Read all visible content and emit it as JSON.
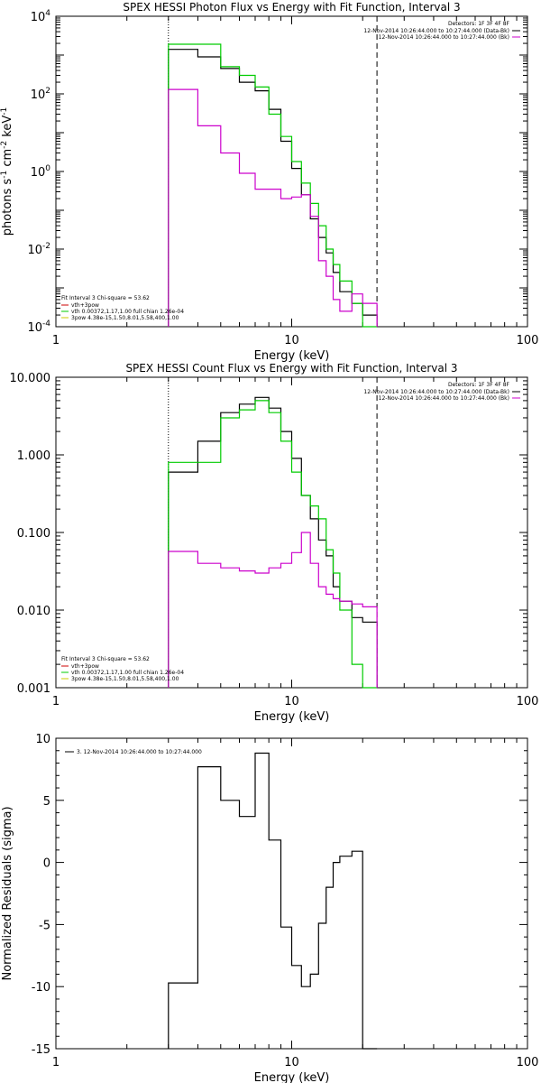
{
  "panels": [
    {
      "title": "SPEX HESSI Photon Flux vs Energy with Fit Function, Interval 3",
      "xlabel": "Energy (keV)",
      "ylabel": "photons s⁻¹ cm⁻² keV⁻¹",
      "ylabel_parts": [
        "photons s",
        "-1",
        " cm",
        "-2",
        " keV",
        "-1"
      ],
      "x_log": true,
      "y_log": true,
      "xlim": [
        1,
        100
      ],
      "ylim": [
        0.0001,
        10000
      ],
      "x_ticks": [
        {
          "v": 1,
          "label": "1"
        },
        {
          "v": 10,
          "label": "10"
        },
        {
          "v": 100,
          "label": "100"
        }
      ],
      "y_ticks": [
        {
          "v": 0.0001,
          "base": "10",
          "exp": "-4"
        },
        {
          "v": 0.01,
          "base": "10",
          "exp": "-2"
        },
        {
          "v": 1,
          "base": "10",
          "exp": "0"
        },
        {
          "v": 100,
          "base": "10",
          "exp": "2"
        },
        {
          "v": 10000,
          "base": "10",
          "exp": "4"
        }
      ],
      "vlines": [
        {
          "x": 3.0,
          "style": "dotted"
        },
        {
          "x": 23.0,
          "style": "dashed"
        }
      ],
      "legend_topright": {
        "header": "Detectors: 1F 3F 4F 8F",
        "lines": [
          {
            "text": "12-Nov-2014 10:26:44.000 to 10:27:44.000 (Data-Bk)",
            "color": "#000000"
          },
          {
            "text": "12-Nov-2014 10:26:44.000 to 10:27:44.000 (Bk)",
            "color": "#cc00cc"
          }
        ]
      },
      "legend_bottomleft": {
        "header": "Fit Interval 3   Chi-square = 53.62",
        "lines": [
          {
            "text": "vth+3pow",
            "color": "#cc0000"
          },
          {
            "text": "vth 0.00372,1.17,1.00  full chian 1.26e-04",
            "color": "#00cc00"
          },
          {
            "text": "3pow 4.38e-15,1.50,8.01,5.58,400,1.00",
            "color": "#cccc00"
          }
        ]
      },
      "chart_data": {
        "type": "line",
        "edges": [
          3.0,
          4.0,
          5.0,
          6.0,
          7.0,
          8.0,
          9.0,
          10.0,
          11.0,
          12.0,
          13.0,
          14.0,
          15.0,
          16.0,
          18.0,
          20.0,
          23.0
        ],
        "series": [
          {
            "color": "#000000",
            "values": [
              1400,
              900,
              450,
              200,
              120,
              40,
              6,
              1.2,
              0.25,
              0.06,
              0.02,
              0.008,
              0.0025,
              0.0008,
              0.0004,
              0.0002
            ]
          },
          {
            "color": "#00cc00",
            "values": [
              1900,
              1900,
              500,
              300,
              150,
              30,
              8,
              1.8,
              0.5,
              0.15,
              0.04,
              0.01,
              0.004,
              0.0015,
              0.0004,
              0.0001
            ]
          },
          {
            "color": "#cc00cc",
            "values": [
              130,
              15,
              3,
              0.9,
              0.35,
              0.35,
              0.2,
              0.22,
              0.25,
              0.07,
              0.005,
              0.002,
              0.0005,
              0.00025,
              0.0007,
              0.0004
            ]
          }
        ]
      }
    },
    {
      "title": "SPEX HESSI Count Flux vs Energy with Fit Function, Interval 3",
      "xlabel": "Energy (keV)",
      "ylabel": "",
      "x_log": true,
      "y_log": true,
      "xlim": [
        1,
        100
      ],
      "ylim": [
        0.001,
        10
      ],
      "x_ticks": [
        {
          "v": 1,
          "label": "1"
        },
        {
          "v": 10,
          "label": "10"
        },
        {
          "v": 100,
          "label": "100"
        }
      ],
      "y_ticks": [
        {
          "v": 0.001,
          "label": "0.001"
        },
        {
          "v": 0.01,
          "label": "0.010"
        },
        {
          "v": 0.1,
          "label": "0.100"
        },
        {
          "v": 1,
          "label": "1.000"
        },
        {
          "v": 10,
          "label": "10.000"
        }
      ],
      "vlines": [
        {
          "x": 3.0,
          "style": "dotted"
        },
        {
          "x": 23.0,
          "style": "dashed"
        }
      ],
      "legend_topright": {
        "header": "Detectors: 1F 3F 4F 8F",
        "lines": [
          {
            "text": "12-Nov-2014 10:26:44.000 to 10:27:44.000 (Data-Bk)",
            "color": "#000000"
          },
          {
            "text": "12-Nov-2014 10:26:44.000 to 10:27:44.000 (Bk)",
            "color": "#cc00cc"
          }
        ]
      },
      "legend_bottomleft": {
        "header": "Fit Interval 3   Chi-square = 53.62",
        "lines": [
          {
            "text": "vth+3pow",
            "color": "#cc0000"
          },
          {
            "text": "vth 0.00372,1.17,1.00  full chian 1.26e-04",
            "color": "#00cc00"
          },
          {
            "text": "3pow 4.38e-15,1.50,8.01,5.58,400,1.00",
            "color": "#cccc00"
          }
        ]
      },
      "chart_data": {
        "type": "line",
        "edges": [
          3.0,
          4.0,
          5.0,
          6.0,
          7.0,
          8.0,
          9.0,
          10.0,
          11.0,
          12.0,
          13.0,
          14.0,
          15.0,
          16.0,
          18.0,
          20.0,
          23.0
        ],
        "series": [
          {
            "color": "#000000",
            "values": [
              0.6,
              1.5,
              3.5,
              4.5,
              5.5,
              4.0,
              2.0,
              0.9,
              0.3,
              0.15,
              0.08,
              0.05,
              0.02,
              0.013,
              0.008,
              0.007
            ]
          },
          {
            "color": "#00cc00",
            "values": [
              0.8,
              0.8,
              3.0,
              3.8,
              5.0,
              3.5,
              1.5,
              0.6,
              0.3,
              0.22,
              0.15,
              0.06,
              0.03,
              0.01,
              0.002,
              0.0008
            ]
          },
          {
            "color": "#cc00cc",
            "values": [
              0.057,
              0.04,
              0.035,
              0.032,
              0.03,
              0.035,
              0.04,
              0.055,
              0.1,
              0.04,
              0.02,
              0.016,
              0.014,
              0.013,
              0.012,
              0.011
            ]
          }
        ]
      }
    },
    {
      "title": "",
      "xlabel": "Energy (keV)",
      "ylabel": "Normalized Residuals (sigma)",
      "x_log": true,
      "y_log": false,
      "xlim": [
        1,
        100
      ],
      "ylim": [
        -15,
        10
      ],
      "x_ticks": [
        {
          "v": 1,
          "label": "1"
        },
        {
          "v": 10,
          "label": "10"
        },
        {
          "v": 100,
          "label": "100"
        }
      ],
      "y_ticks": [
        {
          "v": -15,
          "label": "-15"
        },
        {
          "v": -10,
          "label": "-10"
        },
        {
          "v": -5,
          "label": "-5"
        },
        {
          "v": 0,
          "label": "0"
        },
        {
          "v": 5,
          "label": "5"
        },
        {
          "v": 10,
          "label": "10"
        }
      ],
      "vlines": [],
      "legend_topleft": {
        "lines": [
          {
            "text": "3. 12-Nov-2014 10:26:44.000 to 10:27:44.000",
            "color": "#000000"
          }
        ]
      },
      "chart_data": {
        "type": "line",
        "edges": [
          3.0,
          4.0,
          5.0,
          6.0,
          7.0,
          8.0,
          9.0,
          10.0,
          11.0,
          12.0,
          13.0,
          14.0,
          15.0,
          16.0,
          18.0,
          20.0,
          23.0
        ],
        "series": [
          {
            "color": "#000000",
            "values": [
              -9.7,
              7.7,
              5.0,
              3.7,
              8.8,
              1.8,
              -5.2,
              -8.3,
              -10.0,
              -9.0,
              -4.9,
              -2.0,
              0.0,
              0.5,
              0.9,
              -15.0
            ]
          }
        ]
      }
    }
  ]
}
